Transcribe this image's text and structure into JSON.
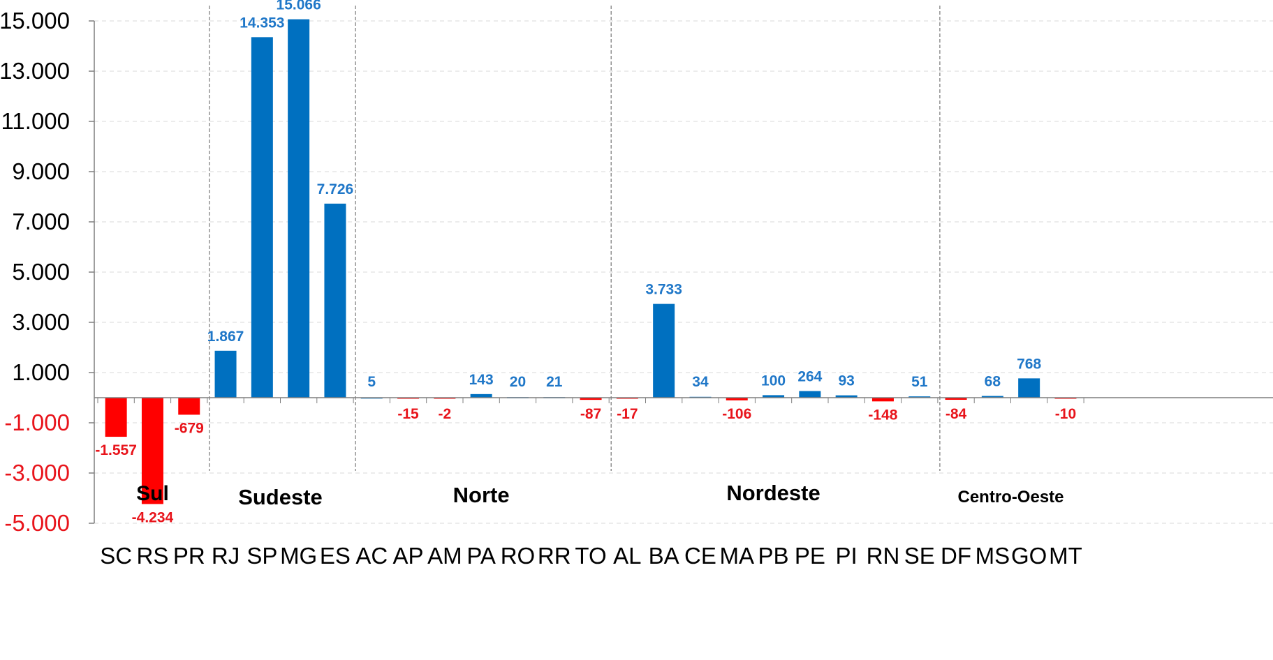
{
  "chart_data": {
    "type": "bar",
    "categories": [
      "SC",
      "RS",
      "PR",
      "RJ",
      "SP",
      "MG",
      "ES",
      "AC",
      "AP",
      "AM",
      "PA",
      "RO",
      "RR",
      "TO",
      "AL",
      "BA",
      "CE",
      "MA",
      "PB",
      "PE",
      "PI",
      "RN",
      "SE",
      "DF",
      "MS",
      "GO",
      "MT"
    ],
    "values": [
      -1557,
      -4234,
      -679,
      1867,
      14353,
      15066,
      7726,
      5,
      -15,
      -2,
      143,
      20,
      21,
      -87,
      -17,
      3733,
      34,
      -106,
      100,
      264,
      93,
      -148,
      51,
      -84,
      68,
      768,
      -10
    ],
    "value_labels": [
      "-1.557",
      "-4.234",
      "-679",
      "1.867",
      "14.353",
      "15.066",
      "7.726",
      "5",
      "-15",
      "-2",
      "143",
      "20",
      "21",
      "-87",
      "-17",
      "3.733",
      "34",
      "-106",
      "100",
      "264",
      "93",
      "-148",
      "51",
      "-84",
      "68",
      "768",
      "-10"
    ],
    "ylim": [
      -5000,
      15000
    ],
    "yticks": [
      -5000,
      -3000,
      -1000,
      1000,
      3000,
      5000,
      7000,
      9000,
      11000,
      13000,
      15000
    ],
    "ytick_labels": [
      "-5.000",
      "-3.000",
      "-1.000",
      "1.000",
      "3.000",
      "5.000",
      "7.000",
      "9.000",
      "11.000",
      "13.000",
      "15.000"
    ],
    "regions": [
      {
        "name": "Sul",
        "categories": [
          "SC",
          "RS",
          "PR"
        ]
      },
      {
        "name": "Sudeste",
        "categories": [
          "RJ",
          "SP",
          "MG",
          "ES"
        ]
      },
      {
        "name": "Norte",
        "categories": [
          "AC",
          "AP",
          "AM",
          "PA",
          "RO",
          "RR",
          "TO"
        ]
      },
      {
        "name": "Nordeste",
        "categories": [
          "AL",
          "BA",
          "CE",
          "MA",
          "PB",
          "PE",
          "PI",
          "RN",
          "SE"
        ]
      },
      {
        "name": "Centro-Oeste",
        "categories": [
          "DF",
          "MS",
          "GO",
          "MT"
        ]
      }
    ],
    "grid": true,
    "colors": {
      "positive": "#0070C0",
      "negative": "#FF0000",
      "positive_label": "#1F77C8",
      "negative_label": "#E8141B",
      "gridline": "#D9D9D9",
      "separator": "#808080",
      "axis": "#7F7F7F"
    }
  }
}
